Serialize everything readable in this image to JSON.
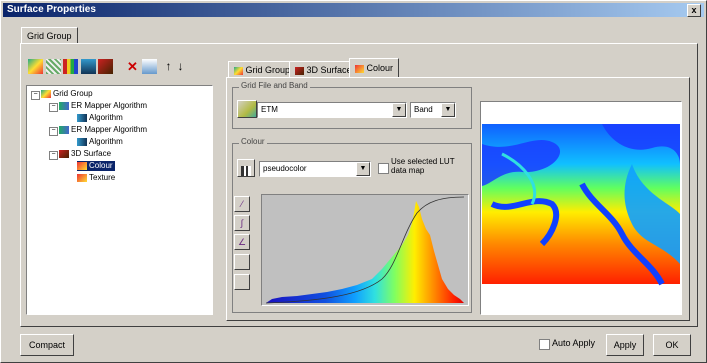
{
  "window": {
    "title": "Surface Properties",
    "close_glyph": "x"
  },
  "outer_tab": {
    "label": "Grid Group"
  },
  "toolbar": {
    "buttons": [
      "grid-color-icon",
      "grid-contour-icon",
      "grid-bars-icon",
      "grid-add-icon",
      "surface-icon",
      "delete-icon",
      "copy-icon",
      "up-icon",
      "down-icon"
    ]
  },
  "tree": {
    "root": "Grid Group",
    "items": [
      {
        "label": "ER Mapper Algorithm",
        "children": [
          "Algorithm"
        ]
      },
      {
        "label": "ER Mapper Algorithm",
        "children": [
          "Algorithm"
        ]
      },
      {
        "label": "3D Surface",
        "children": [
          "Colour",
          "Texture"
        ]
      }
    ]
  },
  "inner_tabs": [
    "Grid Group",
    "3D Surface",
    "Colour"
  ],
  "grid_file": {
    "legend": "Grid File and Band",
    "file_value": "ETM",
    "band_value": "Band"
  },
  "colour": {
    "legend": "Colour",
    "lut_value": "pseudocolor",
    "use_selected_label": "Use selected LUT data map"
  },
  "footer": {
    "compact_label": "Compact",
    "auto_apply_label": "Auto Apply",
    "apply_label": "Apply",
    "ok_label": "OK"
  }
}
